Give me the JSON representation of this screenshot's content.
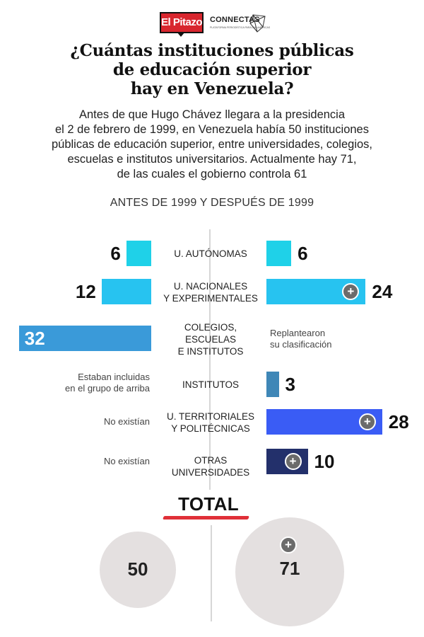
{
  "header": {
    "logo_pitazo": "El Pitazo",
    "logo_connectas": "CONNECTAS",
    "logo_connectas_sub": "PLATAFORMA PERIODÍSTICA PARA LAS AMÉRICAS"
  },
  "title_lines": [
    "¿Cuántas instituciones públicas",
    "de educación superior",
    "hay en Venezuela?"
  ],
  "subtitle_lines": [
    "Antes de que Hugo Chávez llegara a la presidencia",
    "el 2 de febrero de 1999, en Venezuela había 50 instituciones",
    "públicas de educación superior, entre universidades, colegios,",
    "escuelas e institutos universitarios. Actualmente hay 71,",
    "de las cuales el gobierno controla 61"
  ],
  "section_label": "ANTES DE 1999 Y DESPUÉS DE 1999",
  "colors": {
    "light_cyan": "#1fd1e8",
    "sky_blue": "#27c3f0",
    "mid_blue": "#3a9ad9",
    "steel_blue": "#3f87b7",
    "royal_blue": "#3a5cf5",
    "navy": "#23306b",
    "total_underline": "#e03038",
    "circle": "#e4e0e0"
  },
  "chart_data": {
    "type": "bar",
    "orientation": "horizontal-butterfly",
    "categories": [
      "U. AUTÓNOMAS",
      "U. NACIONALES Y EXPERIMENTALES",
      "COLEGIOS, ESCUELAS E INSTITUTOS",
      "INSTITUTOS",
      "U. TERRITORIALES Y POLITÉCNICAS",
      "OTRAS UNIVERSIDADES"
    ],
    "category_lines": [
      [
        "U. AUTÓNOMAS"
      ],
      [
        "U. NACIONALES",
        "Y EXPERIMENTALES"
      ],
      [
        "COLEGIOS,",
        "ESCUELAS",
        "E INSTITUTOS"
      ],
      [
        "INSTITUTOS"
      ],
      [
        "U. TERRITORIALES",
        "Y POLITÉCNICAS"
      ],
      [
        "OTRAS",
        "UNIVERSIDADES"
      ]
    ],
    "before_values": [
      6,
      12,
      32,
      null,
      null,
      null
    ],
    "after_values": [
      6,
      24,
      null,
      3,
      28,
      10
    ],
    "before_labels": [
      "6",
      "12",
      "32",
      "",
      "",
      ""
    ],
    "after_labels": [
      "6",
      "24",
      "",
      "3",
      "28",
      "10"
    ],
    "before_notes": [
      null,
      null,
      null,
      [
        "Estaban incluidas",
        "en el grupo de arriba"
      ],
      [
        "No existían"
      ],
      [
        "No existían"
      ]
    ],
    "after_notes": [
      null,
      null,
      [
        "Replantearon",
        "su clasificación"
      ],
      null,
      null,
      null
    ],
    "after_plus": [
      false,
      true,
      false,
      false,
      true,
      true
    ],
    "before_colors": [
      "#1fd1e8",
      "#27c3f0",
      "#3a9ad9",
      null,
      null,
      null
    ],
    "after_colors": [
      "#1fd1e8",
      "#27c3f0",
      null,
      "#3f87b7",
      "#3a5cf5",
      "#23306b"
    ],
    "total": {
      "label": "TOTAL",
      "before": 50,
      "after": 71,
      "before_label": "50",
      "after_label": "71"
    }
  }
}
